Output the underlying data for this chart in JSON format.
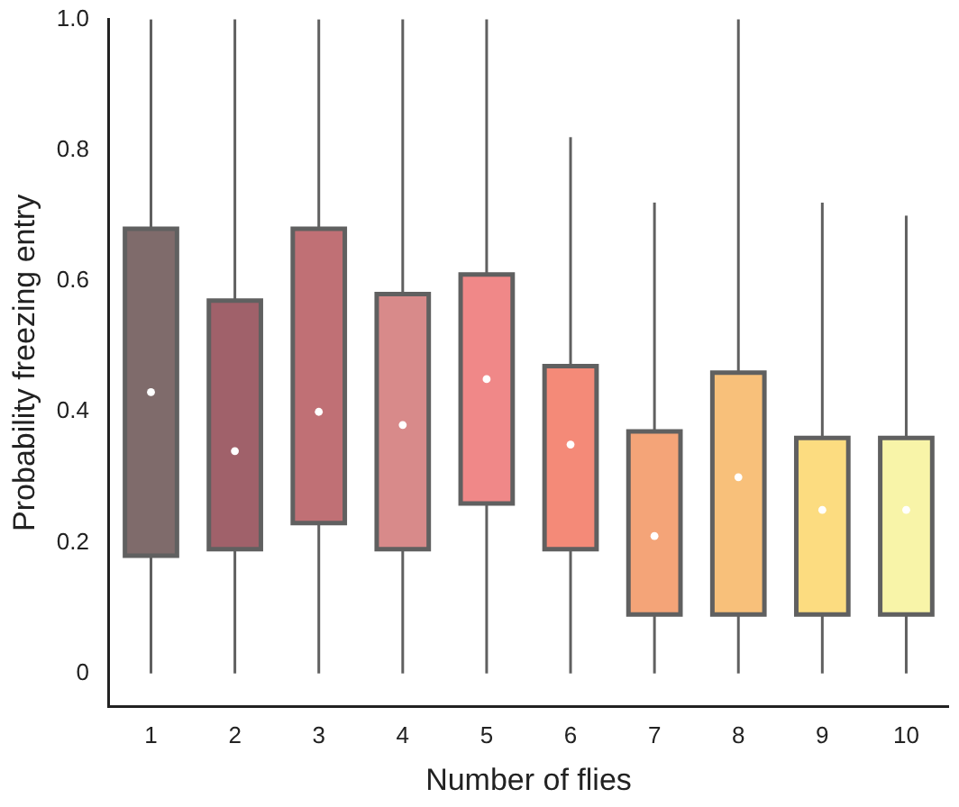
{
  "chart_data": {
    "type": "box",
    "xlabel": "Number of flies",
    "ylabel": "Probability freezing entry",
    "categories": [
      "1",
      "2",
      "3",
      "4",
      "5",
      "6",
      "7",
      "8",
      "9",
      "10"
    ],
    "colors": [
      "#7f6b6b",
      "#a0616a",
      "#c07075",
      "#d88a8a",
      "#f08888",
      "#f48a78",
      "#f4a478",
      "#f8c07a",
      "#fcdc80",
      "#f8f4a8"
    ],
    "boxes": [
      {
        "low": 0,
        "q1": 0.18,
        "median": 0.43,
        "q3": 0.68,
        "high": 1.0
      },
      {
        "low": 0,
        "q1": 0.19,
        "median": 0.34,
        "q3": 0.57,
        "high": 1.0
      },
      {
        "low": 0,
        "q1": 0.23,
        "median": 0.4,
        "q3": 0.68,
        "high": 1.0
      },
      {
        "low": 0,
        "q1": 0.19,
        "median": 0.38,
        "q3": 0.58,
        "high": 1.0
      },
      {
        "low": 0,
        "q1": 0.26,
        "median": 0.45,
        "q3": 0.61,
        "high": 1.0
      },
      {
        "low": 0,
        "q1": 0.19,
        "median": 0.35,
        "q3": 0.47,
        "high": 0.82
      },
      {
        "low": 0,
        "q1": 0.09,
        "median": 0.21,
        "q3": 0.37,
        "high": 0.72
      },
      {
        "low": 0,
        "q1": 0.09,
        "median": 0.3,
        "q3": 0.46,
        "high": 1.0
      },
      {
        "low": 0,
        "q1": 0.09,
        "median": 0.25,
        "q3": 0.36,
        "high": 0.72
      },
      {
        "low": 0,
        "q1": 0.09,
        "median": 0.25,
        "q3": 0.36,
        "high": 0.7
      }
    ],
    "ylim": [
      -0.05,
      1.0
    ],
    "yticks": [
      0,
      0.2,
      0.4,
      0.6,
      0.8,
      {
        "value": 1,
        "label": "1.0"
      }
    ],
    "grid": false,
    "legend": false
  }
}
